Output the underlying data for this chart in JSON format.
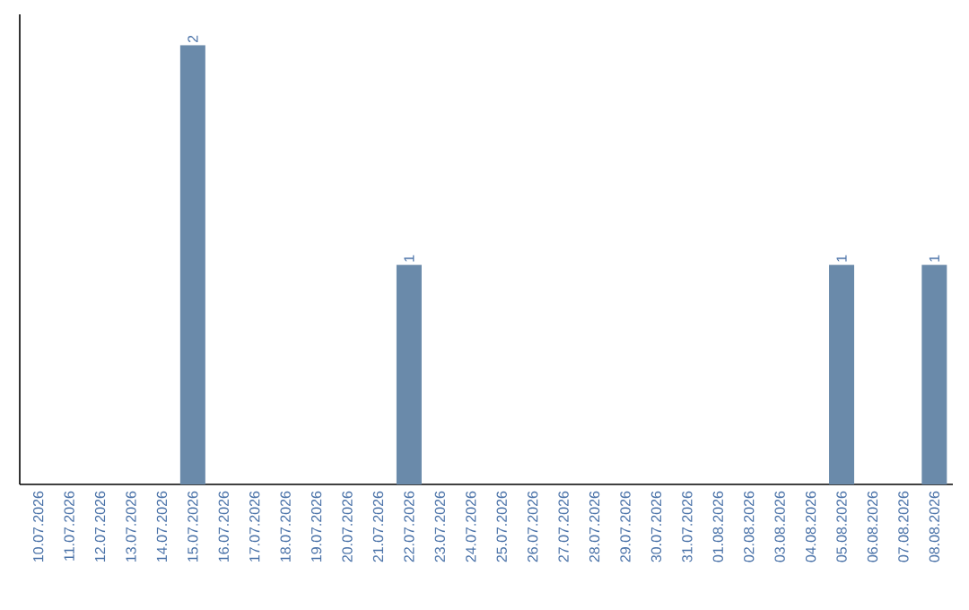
{
  "chart_data": {
    "type": "bar",
    "categories": [
      "10.07.2026",
      "11.07.2026",
      "12.07.2026",
      "13.07.2026",
      "14.07.2026",
      "15.07.2026",
      "16.07.2026",
      "17.07.2026",
      "18.07.2026",
      "19.07.2026",
      "20.07.2026",
      "21.07.2026",
      "22.07.2026",
      "23.07.2026",
      "24.07.2026",
      "25.07.2026",
      "26.07.2026",
      "27.07.2026",
      "28.07.2026",
      "29.07.2026",
      "30.07.2026",
      "31.07.2026",
      "01.08.2026",
      "02.08.2026",
      "03.08.2026",
      "04.08.2026",
      "05.08.2026",
      "06.08.2026",
      "07.08.2026",
      "08.08.2026"
    ],
    "values": [
      0,
      0,
      0,
      0,
      0,
      2,
      0,
      0,
      0,
      0,
      0,
      0,
      1,
      0,
      0,
      0,
      0,
      0,
      0,
      0,
      0,
      0,
      0,
      0,
      0,
      0,
      1,
      0,
      0,
      1
    ],
    "value_labels": [
      null,
      null,
      null,
      null,
      null,
      "2",
      null,
      null,
      null,
      null,
      null,
      null,
      "1",
      null,
      null,
      null,
      null,
      null,
      null,
      null,
      null,
      null,
      null,
      null,
      null,
      null,
      "1",
      null,
      null,
      "1"
    ],
    "color": "#6a8aaa",
    "tick_labels": "x"
  }
}
